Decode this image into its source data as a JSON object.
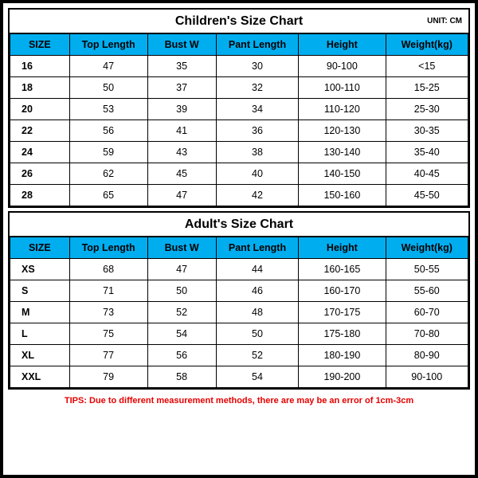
{
  "unit": "UNIT: CM",
  "colors": {
    "header_bg": "#00aef0",
    "border": "#000000",
    "background": "#ffffff",
    "tips": "#e60000"
  },
  "children": {
    "title": "Children's Size Chart",
    "columns": [
      "SIZE",
      "Top Length",
      "Bust W",
      "Pant Length",
      "Height",
      "Weight(kg)"
    ],
    "rows": [
      [
        "16",
        "47",
        "35",
        "30",
        "90-100",
        "<15"
      ],
      [
        "18",
        "50",
        "37",
        "32",
        "100-110",
        "15-25"
      ],
      [
        "20",
        "53",
        "39",
        "34",
        "110-120",
        "25-30"
      ],
      [
        "22",
        "56",
        "41",
        "36",
        "120-130",
        "30-35"
      ],
      [
        "24",
        "59",
        "43",
        "38",
        "130-140",
        "35-40"
      ],
      [
        "26",
        "62",
        "45",
        "40",
        "140-150",
        "40-45"
      ],
      [
        "28",
        "65",
        "47",
        "42",
        "150-160",
        "45-50"
      ]
    ]
  },
  "adult": {
    "title": "Adult's Size Chart",
    "columns": [
      "SIZE",
      "Top Length",
      "Bust W",
      "Pant Length",
      "Height",
      "Weight(kg)"
    ],
    "rows": [
      [
        "XS",
        "68",
        "47",
        "44",
        "160-165",
        "50-55"
      ],
      [
        "S",
        "71",
        "50",
        "46",
        "160-170",
        "55-60"
      ],
      [
        "M",
        "73",
        "52",
        "48",
        "170-175",
        "60-70"
      ],
      [
        "L",
        "75",
        "54",
        "50",
        "175-180",
        "70-80"
      ],
      [
        "XL",
        "77",
        "56",
        "52",
        "180-190",
        "80-90"
      ],
      [
        "XXL",
        "79",
        "58",
        "54",
        "190-200",
        "90-100"
      ]
    ]
  },
  "tips": "TIPS: Due to different measurement methods, there are may be an error of 1cm-3cm"
}
